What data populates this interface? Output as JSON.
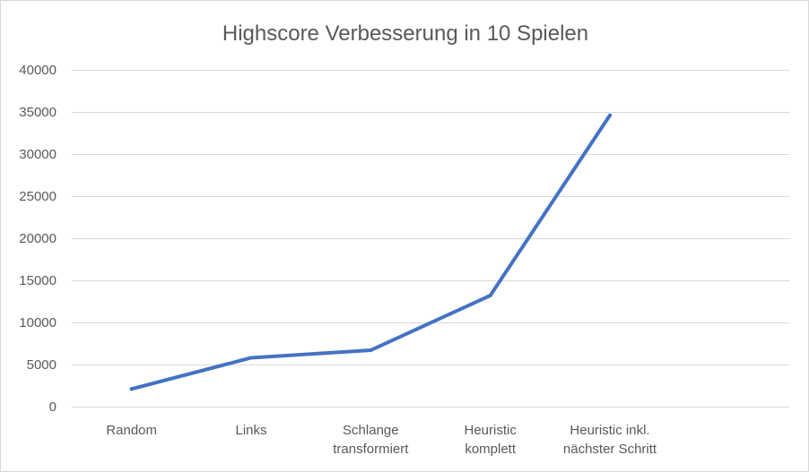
{
  "chart_data": {
    "type": "line",
    "title": "Highscore Verbesserung  in 10 Spielen",
    "xlabel": "",
    "ylabel": "",
    "categories": [
      [
        "Random"
      ],
      [
        "Links"
      ],
      [
        "Schlange",
        "transformiert"
      ],
      [
        "Heuristic",
        "komplett"
      ],
      [
        "Heuristic inkl.",
        "nächster Schritt"
      ]
    ],
    "series": [
      {
        "values": [
          2100,
          5800,
          6700,
          13200,
          34600
        ],
        "color": "#4472C4"
      }
    ],
    "ylim": [
      0,
      40000
    ],
    "yticks": [
      0,
      5000,
      10000,
      15000,
      20000,
      25000,
      30000,
      35000,
      40000
    ],
    "grid": true,
    "legend": "none"
  }
}
